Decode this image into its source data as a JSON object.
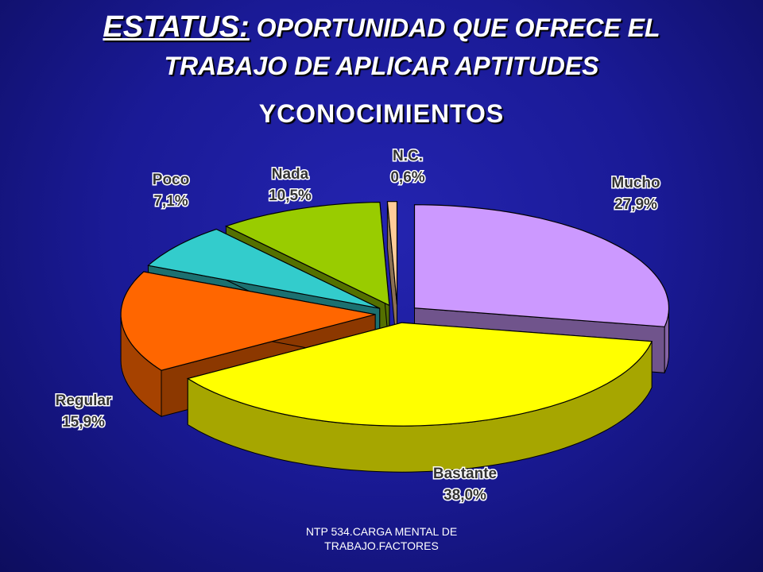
{
  "chart_data": {
    "type": "pie",
    "title": "ESTATUS:",
    "subtitle": [
      "OPORTUNIDAD QUE OFRECE EL",
      "TRABAJO DE APLICAR APTITUDES",
      "YCONOCIMIENTOS"
    ],
    "categories": [
      "Mucho",
      "Bastante",
      "Regular",
      "Poco",
      "Nada",
      "N.C."
    ],
    "values": [
      27.9,
      38.0,
      15.9,
      7.1,
      10.5,
      0.6
    ],
    "value_labels": [
      "27,9%",
      "38,0%",
      "15,9%",
      "7,1%",
      "10,5%",
      "0,6%"
    ],
    "colors": [
      "#cc99ff",
      "#ffff00",
      "#ff6600",
      "#33cccc",
      "#99cc00",
      "#ffcc99"
    ]
  },
  "footer": "NTP 534.CARGA MENTAL DE TRABAJO.FACTORES"
}
